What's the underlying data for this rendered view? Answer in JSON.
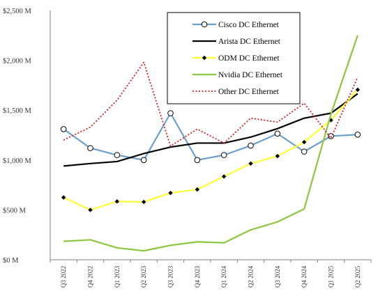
{
  "chart_data": {
    "type": "line",
    "categories": [
      "Q3 2022",
      "Q4 2022",
      "Q1 2023",
      "Q2 2023",
      "Q3 2023",
      "Q4 2023",
      "Q1 2024",
      "Q2 2024",
      "Q3 2024",
      "Q4 2024",
      "Q1 2025",
      "Q2 2025"
    ],
    "y_ticks": [
      "$0 M",
      "$500 M",
      "$1,000 M",
      "$1,500 M",
      "$2,000 M",
      "$2,500 M"
    ],
    "ylim": [
      0,
      2500
    ],
    "grid": false,
    "legend_position": "top-right",
    "series": [
      {
        "name": "Cisco DC Ethernet",
        "color": "#6a9fcc",
        "style": "solid",
        "marker": "open-circle",
        "values": [
          1310,
          1120,
          1050,
          1000,
          1470,
          1000,
          1050,
          1145,
          1265,
          1085,
          1240,
          1255
        ]
      },
      {
        "name": "Arista DC Ethernet",
        "color": "#000000",
        "style": "solid",
        "marker": "none",
        "values": [
          940,
          965,
          985,
          1065,
          1130,
          1170,
          1170,
          1230,
          1315,
          1420,
          1470,
          1665
        ]
      },
      {
        "name": "ODM DC Ethernet",
        "color": "#ffff33",
        "style": "solid",
        "marker": "black-diamond",
        "values": [
          625,
          500,
          585,
          580,
          670,
          705,
          835,
          965,
          1040,
          1180,
          1400,
          1705
        ]
      },
      {
        "name": "Nvidia DC Ethernet",
        "color": "#8dc63f",
        "style": "solid",
        "marker": "none",
        "values": [
          185,
          200,
          120,
          90,
          145,
          180,
          170,
          300,
          380,
          510,
          1460,
          2250
        ]
      },
      {
        "name": "Other DC Ethernet",
        "color": "#cc2222",
        "style": "dotted",
        "marker": "none",
        "values": [
          1200,
          1330,
          1600,
          1980,
          1140,
          1310,
          1170,
          1420,
          1380,
          1570,
          1220,
          1830
        ]
      }
    ]
  }
}
